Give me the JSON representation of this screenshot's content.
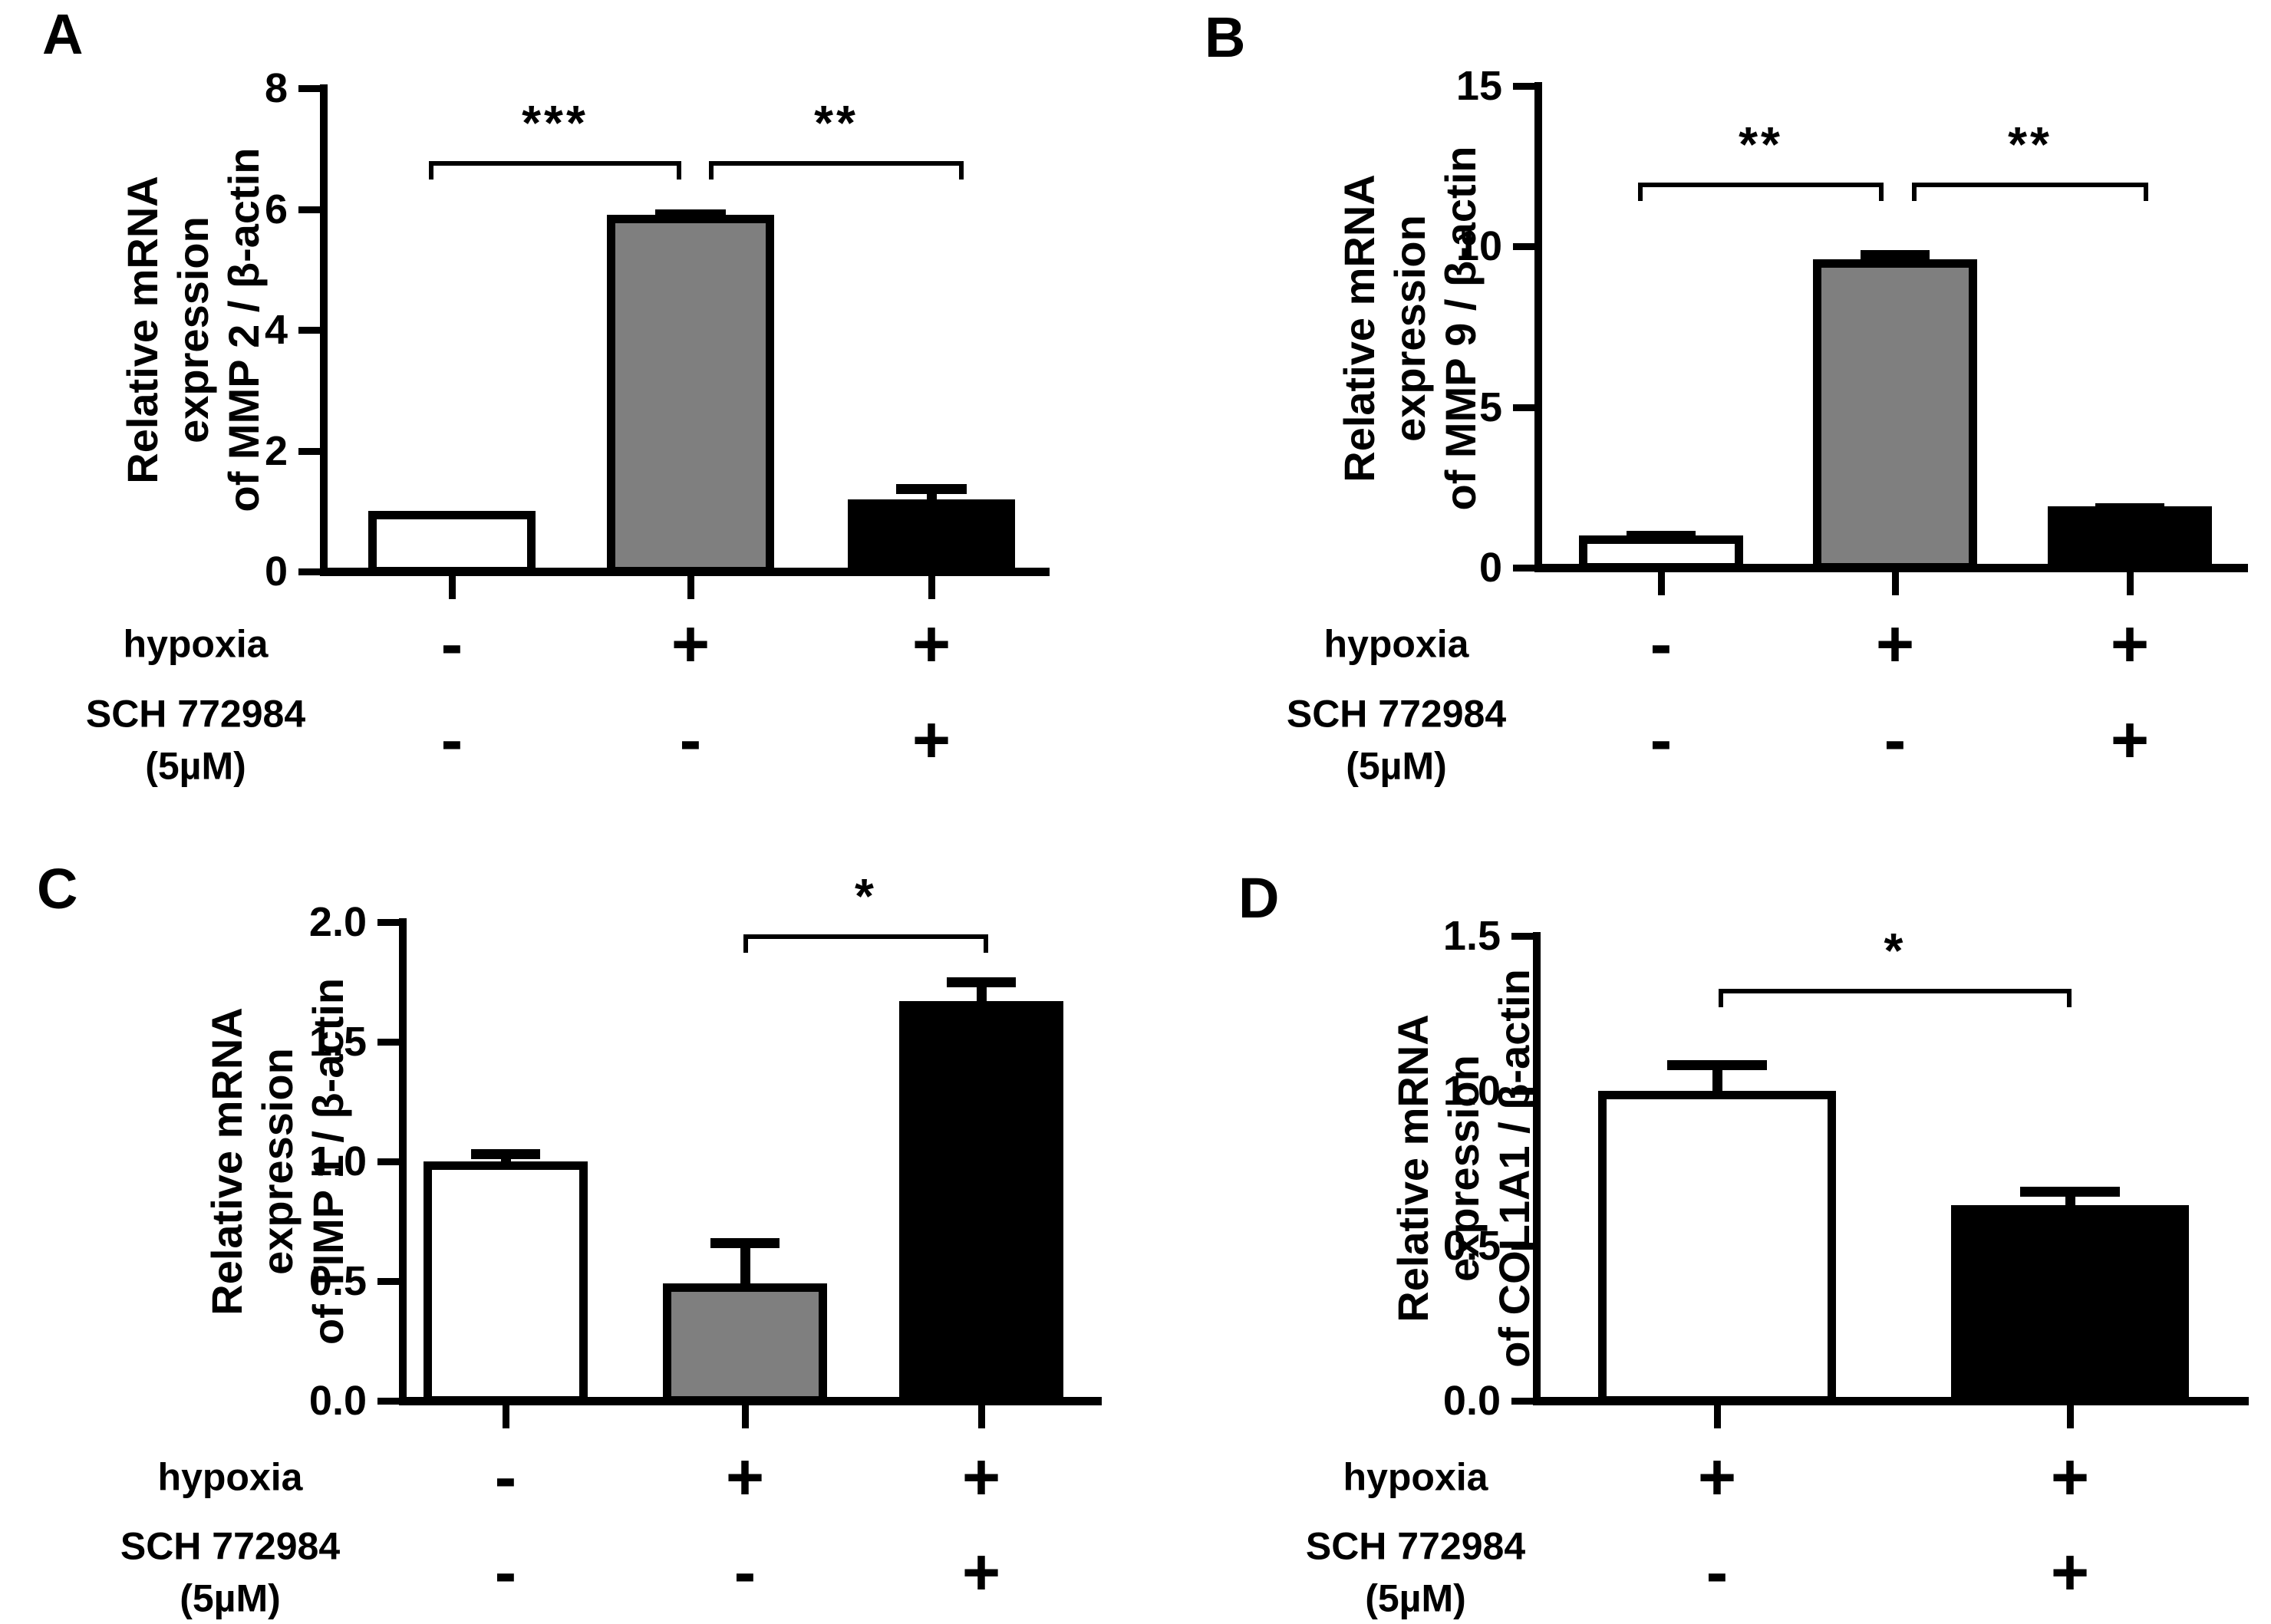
{
  "figure": {
    "background": "#ffffff"
  },
  "colors": {
    "axis": "#000000",
    "text": "#000000",
    "bar_white": "#ffffff",
    "bar_gray": "#7f7f7f",
    "bar_black": "#000000"
  },
  "chart_data": [
    {
      "panel": "A",
      "type": "bar",
      "ylabel": [
        "Relative mRNA expression",
        "of MMP 2 / β-actin"
      ],
      "ylim": [
        0,
        8
      ],
      "yticks": [
        0,
        2,
        4,
        6,
        8
      ],
      "ytick_decimals": 0,
      "grid": false,
      "x_rows": [
        {
          "label": "hypoxia",
          "values": [
            "-",
            "+",
            "+"
          ]
        },
        {
          "label": "SCH 772984\n(5µM)",
          "values": [
            "-",
            "-",
            "+"
          ]
        }
      ],
      "bars": [
        {
          "fill": "white",
          "value": 1.0,
          "err": 0
        },
        {
          "fill": "gray",
          "value": 5.9,
          "err": 0.1
        },
        {
          "fill": "black",
          "value": 1.2,
          "err": 0.25
        }
      ],
      "significance": [
        {
          "between": [
            0,
            1
          ],
          "label": "***",
          "y": 6.8
        },
        {
          "between": [
            1,
            2
          ],
          "label": "**",
          "y": 6.8
        }
      ]
    },
    {
      "panel": "B",
      "type": "bar",
      "ylabel": [
        "Relative mRNA expression",
        "of MMP 9 / β-actin"
      ],
      "ylim": [
        0,
        15
      ],
      "yticks": [
        0,
        5,
        10,
        15
      ],
      "ytick_decimals": 0,
      "grid": false,
      "x_rows": [
        {
          "label": "hypoxia",
          "values": [
            "-",
            "+",
            "+"
          ]
        },
        {
          "label": "SCH 772984\n(5µM)",
          "values": [
            "-",
            "-",
            "+"
          ]
        }
      ],
      "bars": [
        {
          "fill": "white",
          "value": 1.0,
          "err": 0.15
        },
        {
          "fill": "gray",
          "value": 9.6,
          "err": 0.3
        },
        {
          "fill": "black",
          "value": 1.9,
          "err": 0.1
        }
      ],
      "significance": [
        {
          "between": [
            0,
            1
          ],
          "label": "**",
          "y": 12.0
        },
        {
          "between": [
            1,
            2
          ],
          "label": "**",
          "y": 12.0
        }
      ]
    },
    {
      "panel": "C",
      "type": "bar",
      "ylabel": [
        "Relative mRNA expression",
        "of TIMP 1 / β-actin"
      ],
      "ylim": [
        0,
        2.0
      ],
      "yticks": [
        0.0,
        0.5,
        1.0,
        1.5,
        2.0
      ],
      "ytick_decimals": 1,
      "grid": false,
      "x_rows": [
        {
          "label": "hypoxia",
          "values": [
            "-",
            "+",
            "+"
          ]
        },
        {
          "label": "SCH 772984\n(5µM)",
          "values": [
            "-",
            "-",
            "+"
          ]
        }
      ],
      "bars": [
        {
          "fill": "white",
          "value": 1.0,
          "err": 0.05
        },
        {
          "fill": "gray",
          "value": 0.49,
          "err": 0.19
        },
        {
          "fill": "black",
          "value": 1.67,
          "err": 0.1
        }
      ],
      "significance": [
        {
          "between": [
            1,
            2
          ],
          "label": "*",
          "y": 1.95
        }
      ]
    },
    {
      "panel": "D",
      "type": "bar",
      "ylabel": [
        "Relative mRNA expression",
        "of COL1A1 / β-actin"
      ],
      "ylim": [
        0,
        1.5
      ],
      "yticks": [
        0.0,
        0.5,
        1.0,
        1.5
      ],
      "ytick_decimals": 1,
      "grid": false,
      "x_rows": [
        {
          "label": "hypoxia",
          "values": [
            "+",
            "+"
          ]
        },
        {
          "label": "SCH 772984\n(5µM)",
          "values": [
            "-",
            "+"
          ]
        }
      ],
      "bars": [
        {
          "fill": "white",
          "value": 1.0,
          "err": 0.1
        },
        {
          "fill": "black",
          "value": 0.63,
          "err": 0.06
        }
      ],
      "significance": [
        {
          "between": [
            0,
            1
          ],
          "label": "*",
          "y": 1.33
        }
      ]
    }
  ]
}
